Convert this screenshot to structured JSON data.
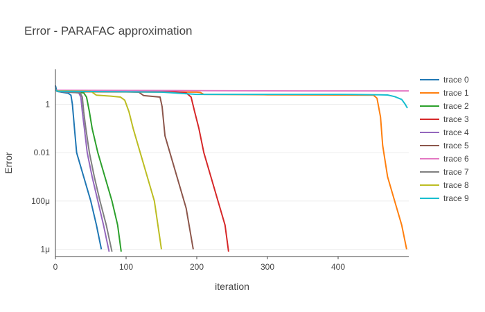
{
  "chart_data": {
    "type": "line",
    "title": "Error - PARAFAC approximation",
    "xlabel": "iteration",
    "ylabel": "Error",
    "x_scale": "linear",
    "y_scale": "log",
    "xlim": [
      0,
      500
    ],
    "ylim_log10": [
      -6.3,
      1.45
    ],
    "x_ticks": [
      0,
      100,
      200,
      300,
      400
    ],
    "y_ticks": [
      {
        "value": 1,
        "label": "1"
      },
      {
        "value": 0.01,
        "label": "0.01"
      },
      {
        "value": 0.0001,
        "label": "100μ"
      },
      {
        "value": 1e-06,
        "label": "1μ"
      }
    ],
    "grid": true,
    "legend_position": "right",
    "series": [
      {
        "name": "trace 0",
        "color": "#1f77b4",
        "points": [
          [
            0,
            6
          ],
          [
            2,
            3.5
          ],
          [
            8,
            3.2
          ],
          [
            18,
            2.9
          ],
          [
            22,
            2.4
          ],
          [
            24,
            1.0
          ],
          [
            27,
            0.1
          ],
          [
            30,
            0.01
          ],
          [
            40,
            0.001
          ],
          [
            50,
            0.0001
          ],
          [
            58,
            1e-05
          ],
          [
            65,
            1e-06
          ]
        ]
      },
      {
        "name": "trace 1",
        "color": "#ff7f0e",
        "points": [
          [
            0,
            4
          ],
          [
            3,
            3.6
          ],
          [
            30,
            3.3
          ],
          [
            200,
            3.2
          ],
          [
            205,
            3.1
          ],
          [
            210,
            2.6
          ],
          [
            300,
            2.5
          ],
          [
            400,
            2.45
          ],
          [
            450,
            2.4
          ],
          [
            455,
            1.8
          ],
          [
            460,
            0.3
          ],
          [
            463,
            0.02
          ],
          [
            470,
            0.001
          ],
          [
            480,
            0.0001
          ],
          [
            490,
            1e-05
          ],
          [
            497,
            1e-06
          ]
        ]
      },
      {
        "name": "trace 2",
        "color": "#2ca02c",
        "points": [
          [
            0,
            4
          ],
          [
            3,
            3.5
          ],
          [
            40,
            3.0
          ],
          [
            44,
            2.0
          ],
          [
            48,
            0.5
          ],
          [
            52,
            0.1
          ],
          [
            60,
            0.01
          ],
          [
            70,
            0.001
          ],
          [
            80,
            0.0001
          ],
          [
            88,
            1e-05
          ],
          [
            93,
            8e-07
          ]
        ]
      },
      {
        "name": "trace 3",
        "color": "#d62728",
        "points": [
          [
            0,
            4
          ],
          [
            3,
            3.6
          ],
          [
            100,
            3.4
          ],
          [
            170,
            3.3
          ],
          [
            185,
            3.0
          ],
          [
            192,
            2.0
          ],
          [
            197,
            0.5
          ],
          [
            203,
            0.1
          ],
          [
            210,
            0.01
          ],
          [
            220,
            0.001
          ],
          [
            230,
            0.0001
          ],
          [
            240,
            1e-05
          ],
          [
            245,
            8e-07
          ]
        ]
      },
      {
        "name": "trace 4",
        "color": "#9467bd",
        "points": [
          [
            0,
            4
          ],
          [
            3,
            3.4
          ],
          [
            33,
            3.0
          ],
          [
            36,
            2.0
          ],
          [
            38,
            0.5
          ],
          [
            41,
            0.1
          ],
          [
            45,
            0.01
          ],
          [
            52,
            0.001
          ],
          [
            60,
            0.0001
          ],
          [
            68,
            1e-05
          ],
          [
            76,
            8e-07
          ]
        ]
      },
      {
        "name": "trace 5",
        "color": "#8c564b",
        "points": [
          [
            0,
            4
          ],
          [
            3,
            3.4
          ],
          [
            100,
            3.3
          ],
          [
            118,
            3.2
          ],
          [
            125,
            2.3
          ],
          [
            140,
            2.1
          ],
          [
            148,
            2.0
          ],
          [
            151,
            0.8
          ],
          [
            155,
            0.05
          ],
          [
            165,
            0.005
          ],
          [
            175,
            0.0005
          ],
          [
            185,
            5e-05
          ],
          [
            195,
            1e-06
          ]
        ]
      },
      {
        "name": "trace 6",
        "color": "#e377c2",
        "points": [
          [
            0,
            4
          ],
          [
            3,
            3.8
          ],
          [
            200,
            3.7
          ],
          [
            350,
            3.6
          ],
          [
            500,
            3.6
          ]
        ]
      },
      {
        "name": "trace 7",
        "color": "#7f7f7f",
        "points": [
          [
            0,
            4
          ],
          [
            3,
            3.4
          ],
          [
            35,
            3.0
          ],
          [
            38,
            2.0
          ],
          [
            40,
            0.5
          ],
          [
            43,
            0.1
          ],
          [
            48,
            0.01
          ],
          [
            55,
            0.001
          ],
          [
            63,
            0.0001
          ],
          [
            72,
            1e-05
          ],
          [
            80,
            8e-07
          ]
        ]
      },
      {
        "name": "trace 8",
        "color": "#bcbd22",
        "points": [
          [
            0,
            4
          ],
          [
            3,
            3.6
          ],
          [
            50,
            3.5
          ],
          [
            58,
            2.4
          ],
          [
            78,
            2.2
          ],
          [
            92,
            2.0
          ],
          [
            98,
            1.5
          ],
          [
            104,
            0.5
          ],
          [
            110,
            0.1
          ],
          [
            120,
            0.01
          ],
          [
            130,
            0.001
          ],
          [
            140,
            0.0001
          ],
          [
            150,
            1e-06
          ]
        ]
      },
      {
        "name": "trace 9",
        "color": "#17becf",
        "points": [
          [
            0,
            4
          ],
          [
            3,
            3.5
          ],
          [
            150,
            3.2
          ],
          [
            200,
            2.6
          ],
          [
            300,
            2.6
          ],
          [
            400,
            2.6
          ],
          [
            460,
            2.5
          ],
          [
            470,
            2.45
          ],
          [
            480,
            2.1
          ],
          [
            490,
            1.6
          ],
          [
            495,
            1.0
          ],
          [
            498,
            0.7
          ]
        ]
      }
    ]
  }
}
